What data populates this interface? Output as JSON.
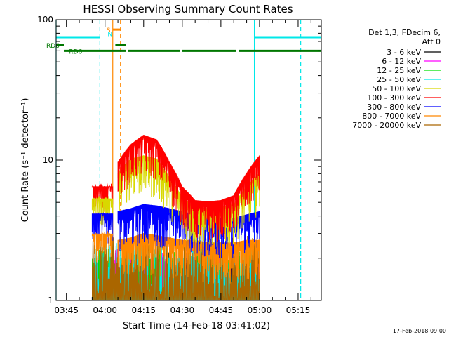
{
  "chart_data": {
    "type": "line",
    "title": "HESSI Observing Summary Count Rates",
    "xlabel": "Start Time (14-Feb-18 03:41:02)",
    "ylabel": "Count Rate (s⁻¹ detector⁻¹)",
    "y_scale": "log",
    "ylim": [
      1,
      100
    ],
    "xlim": [
      "03:41",
      "05:24"
    ],
    "x_ticks": [
      "03:45",
      "04:00",
      "04:15",
      "04:30",
      "04:45",
      "05:00",
      "05:15"
    ],
    "y_ticks": [
      "1",
      "10",
      "100"
    ],
    "legend": {
      "header": [
        "Det 1,3, FDecim 6,",
        "Att 0"
      ],
      "placement": "right",
      "entries": [
        {
          "label": "3 - 6 keV",
          "color": "#000000"
        },
        {
          "label": "6 - 12 keV",
          "color": "#ff00ff"
        },
        {
          "label": "12 - 25 keV",
          "color": "#00e000"
        },
        {
          "label": "25 - 50 keV",
          "color": "#00e8e8"
        },
        {
          "label": "50 - 100 keV",
          "color": "#d8d800"
        },
        {
          "label": "100 - 300 keV",
          "color": "#ff0000"
        },
        {
          "label": "300 - 800 keV",
          "color": "#0000ff"
        },
        {
          "label": "800 - 7000 keV",
          "color": "#ff8800"
        },
        {
          "label": "7000 - 20000 keV",
          "color": "#aa6600"
        }
      ]
    },
    "series": [
      {
        "name": "100 - 300 keV",
        "color": "#ff0000",
        "x": [
          "04:05",
          "04:10",
          "04:15",
          "04:20",
          "04:25",
          "04:30",
          "04:35",
          "04:40",
          "04:45",
          "04:50",
          "04:55",
          "05:00"
        ],
        "y": [
          9,
          12,
          14,
          13,
          9,
          6,
          4.8,
          4.7,
          4.8,
          5.2,
          7.5,
          10
        ]
      },
      {
        "name": "50 - 100 keV",
        "color": "#d8d800",
        "x": [
          "04:05",
          "04:10",
          "04:15",
          "04:20",
          "04:25",
          "04:30",
          "04:35",
          "04:40",
          "04:45",
          "04:50",
          "04:55",
          "05:00"
        ],
        "y": [
          7.5,
          9.5,
          10,
          9.5,
          7,
          5,
          4.3,
          4.2,
          4.3,
          4.5,
          6,
          7.5
        ]
      },
      {
        "name": "300 - 800 keV",
        "color": "#0000ff",
        "x": [
          "04:05",
          "04:10",
          "04:15",
          "04:20",
          "04:25",
          "04:30",
          "04:35",
          "04:40",
          "04:45",
          "04:50",
          "04:55",
          "05:00"
        ],
        "y": [
          4,
          4.2,
          4.5,
          4.4,
          4.2,
          4,
          3.8,
          3.6,
          3.6,
          3.6,
          3.8,
          4
        ]
      },
      {
        "name": "800 - 7000 keV",
        "color": "#ff8800",
        "x": [
          "04:05",
          "04:10",
          "04:15",
          "04:20",
          "04:25",
          "04:30",
          "04:35",
          "04:40",
          "04:45",
          "04:50",
          "04:55",
          "05:00"
        ],
        "y": [
          2.5,
          2.6,
          2.8,
          2.7,
          2.6,
          2.5,
          2.5,
          2.4,
          2.4,
          2.4,
          2.5,
          2.5
        ]
      }
    ],
    "pre_peak_segment": {
      "x_start": "03:55",
      "x_end": "04:03",
      "y_top": 6.5
    },
    "state_bars": [
      {
        "label": "S",
        "color": "#ff8800",
        "y": 85,
        "x_start": "04:03",
        "x_end": "04:06"
      },
      {
        "label": "N",
        "color": "#00e8e8",
        "y": 80
      },
      {
        "label": "RD6",
        "color": "#007700",
        "y": 66,
        "segments": [
          [
            "03:41",
            "03:44"
          ],
          [
            "04:04",
            "04:08"
          ]
        ]
      },
      {
        "label": "RD6",
        "color": "#007700",
        "y": 60,
        "segments": [
          [
            "03:44",
            "04:08"
          ],
          [
            "04:09",
            "04:29"
          ],
          [
            "04:30",
            "04:51"
          ],
          [
            "04:52",
            "05:24"
          ]
        ]
      },
      {
        "label": "",
        "color": "#00e8e8",
        "y": 75,
        "segments": [
          [
            "03:41",
            "03:58"
          ],
          [
            "04:58",
            "05:24"
          ]
        ]
      }
    ],
    "vlines": [
      {
        "x": "03:41",
        "color": "#00e8e8",
        "style": "solid"
      },
      {
        "x": "03:58",
        "color": "#00e8e8",
        "style": "dashed"
      },
      {
        "x": "04:03",
        "color": "#ff8800",
        "style": "solid"
      },
      {
        "x": "04:06",
        "color": "#ff8800",
        "style": "dashed"
      },
      {
        "x": "04:58",
        "color": "#00e8e8",
        "style": "solid"
      },
      {
        "x": "05:16",
        "color": "#00e8e8",
        "style": "dashed"
      }
    ],
    "footer_date": "17-Feb-2018 09:00",
    "grid": false
  }
}
